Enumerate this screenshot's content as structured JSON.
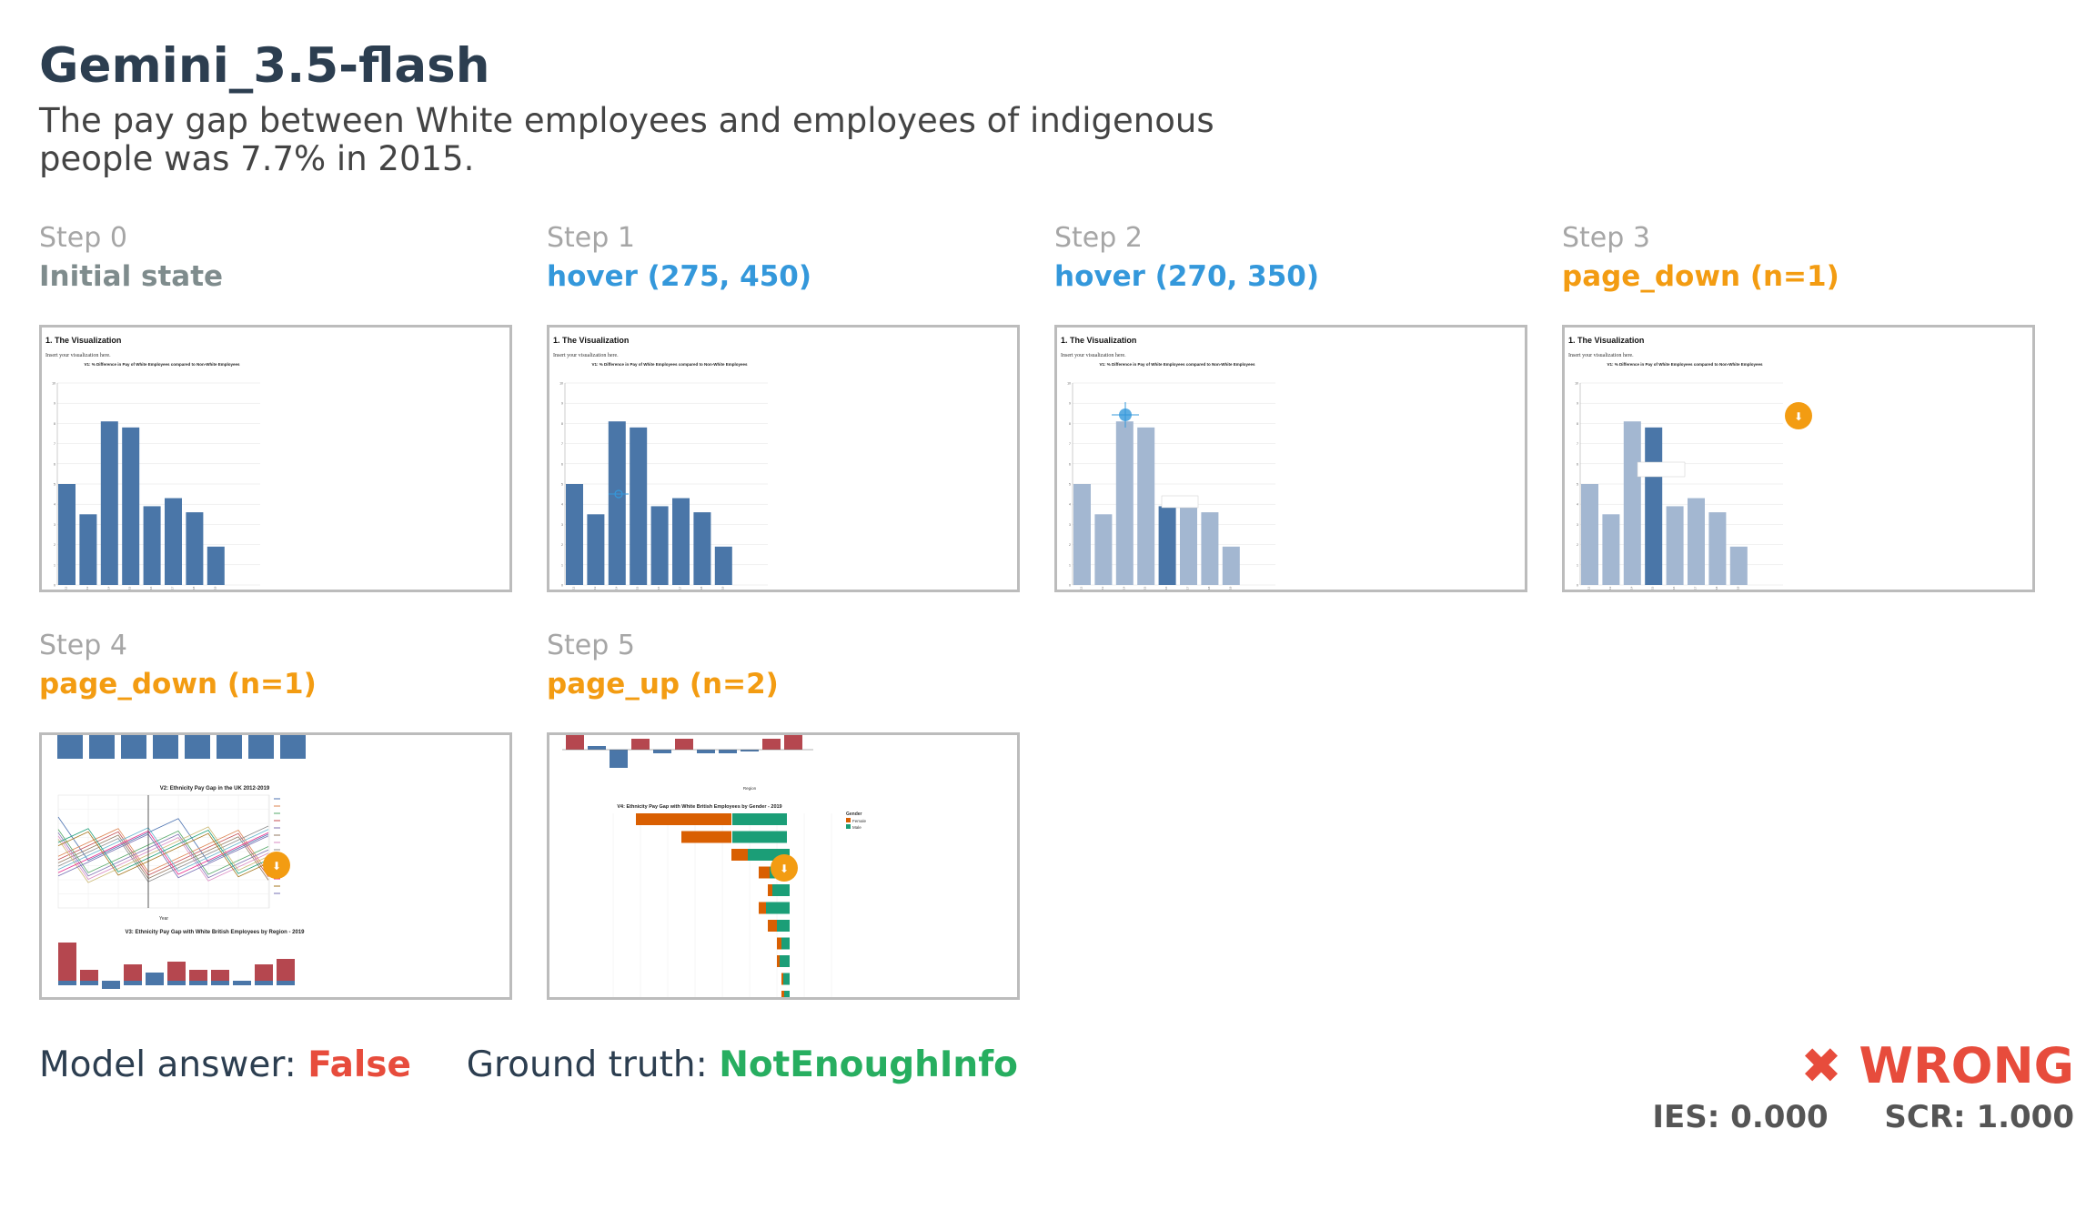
{
  "title": "Gemini_3.5-flash",
  "claim": "The pay gap between White employees and employees of indigenous people was 7.7% in 2015.",
  "colors": {
    "initial": "#7f8c8d",
    "hover": "#3498db",
    "page": "#f39c12",
    "false": "#e74c3c",
    "truth": "#27ae60",
    "bar": "#4a76a8",
    "bar_faded": "#a3b7d1"
  },
  "steps": [
    {
      "num": "Step 0",
      "action": "Initial state",
      "kind": "initial",
      "shot": {
        "heading": "1. The Visualization",
        "sub": "Insert your visualization here.",
        "chart_title": "V1: % Difference in Pay of White Employees compared to Non-White Employees"
      }
    },
    {
      "num": "Step 1",
      "action": "hover (275, 450)",
      "kind": "hover",
      "shot": {
        "heading": "1. The Visualization",
        "sub": "Insert your visualization here.",
        "chart_title": "V1: % Difference in Pay of White Employees compared to Non-White Employees"
      }
    },
    {
      "num": "Step 2",
      "action": "hover (270, 350)",
      "kind": "hover",
      "shot": {
        "heading": "1. The Visualization",
        "sub": "Insert your visualization here.",
        "chart_title": "V1: % Difference in Pay of White Employees compared to Non-White Employees"
      }
    },
    {
      "num": "Step 3",
      "action": "page_down (n=1)",
      "kind": "page",
      "shot": {
        "heading": "1. The Visualization",
        "sub": "Insert your visualization here.",
        "chart_title": "V1: % Difference in Pay of White Employees compared to Non-White Employees"
      }
    },
    {
      "num": "Step 4",
      "action": "page_down (n=1)",
      "kind": "page",
      "shot": {
        "chart_title_a": "V2: Ethnicity Pay Gap in the UK 2012-2019",
        "chart_title_b": "V3: Ethnicity Pay Gap with White British Employees by Region - 2019",
        "x_label": "Year"
      }
    },
    {
      "num": "Step 5",
      "action": "page_up (n=2)",
      "kind": "page",
      "shot": {
        "chart_title": "V4: Ethnicity Pay Gap with White British Employees by Gender - 2019",
        "x_label": "Region",
        "legend_title": "Gender",
        "legend_items": [
          "Female",
          "Male"
        ]
      }
    }
  ],
  "v1_chart_data": {
    "type": "bar",
    "categories": [
      "2012",
      "2013",
      "2014",
      "2015",
      "2016",
      "2017",
      "2018",
      "2019"
    ],
    "values": [
      5.0,
      3.5,
      8.1,
      7.8,
      3.9,
      4.3,
      3.6,
      1.9
    ],
    "ylim": [
      0,
      10
    ]
  },
  "answer": {
    "label": "Model answer:",
    "value": "False",
    "truth_label": "Ground truth:",
    "truth_value": "NotEnoughInfo"
  },
  "verdict": "✖ WRONG",
  "scores": {
    "ies": "IES: 0.000",
    "scr": "SCR: 1.000"
  }
}
